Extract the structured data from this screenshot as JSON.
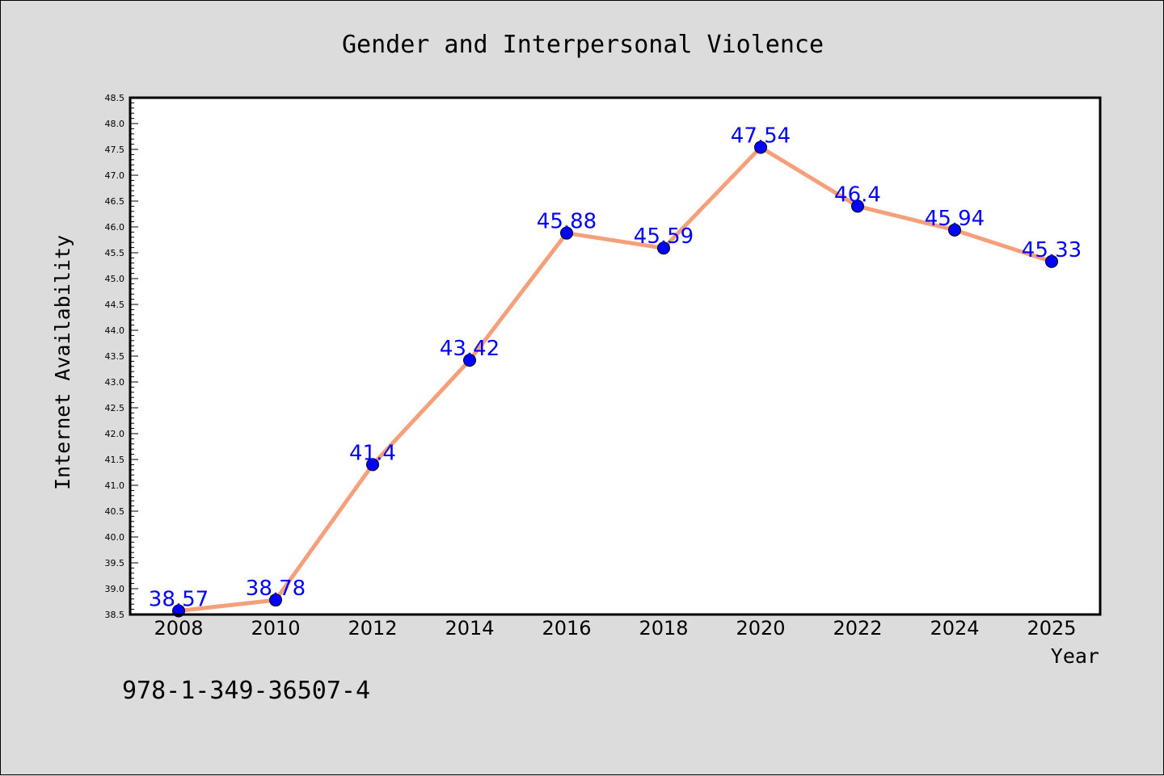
{
  "chart_data": {
    "type": "line",
    "title": "Gender and Interpersonal Violence",
    "xlabel": "Year",
    "ylabel": "Internet Availability",
    "x": [
      "2008",
      "2010",
      "2012",
      "2014",
      "2016",
      "2018",
      "2020",
      "2022",
      "2024",
      "2025"
    ],
    "xticks": [
      "2008",
      "2010",
      "2012",
      "2014",
      "2016",
      "2018",
      "2020",
      "2022",
      "2024",
      "2025"
    ],
    "series": [
      {
        "values": [
          38.57,
          38.78,
          41.4,
          43.42,
          45.88,
          45.59,
          47.54,
          46.4,
          45.94,
          45.33
        ],
        "data_labels": [
          "38.57",
          "38.78",
          "41.4",
          "43.42",
          "45.88",
          "45.59",
          "47.54",
          "46.4",
          "45.94",
          "45.33"
        ]
      }
    ],
    "ylim": [
      38.5,
      48.5
    ],
    "yticks": [
      "38.5",
      "39.0",
      "39.5",
      "40.0",
      "40.5",
      "41.0",
      "41.5",
      "42.0",
      "42.5",
      "43.0",
      "43.5",
      "44.0",
      "44.5",
      "45.0",
      "45.5",
      "46.0",
      "46.5",
      "47.0",
      "47.5",
      "48.0",
      "48.5"
    ],
    "grid": false,
    "line_color": "#f5a07a",
    "marker_color": "#0000ff",
    "label_color": "#0000ff"
  },
  "footer": {
    "isbn": "978-1-349-36507-4"
  }
}
